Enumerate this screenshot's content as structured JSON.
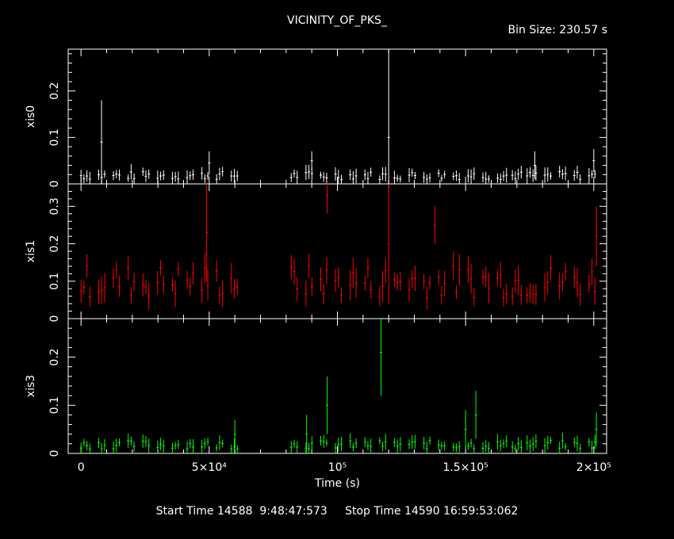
{
  "header": {
    "title": "VICINITY_OF_PKS_",
    "bin_size": "Bin Size: 230.57 s"
  },
  "footer": {
    "start_label": "Start Time 14588  9:48:47:573",
    "stop_label": "Stop Time 14590 16:59:53:062"
  },
  "chart_data": [
    {
      "type": "line",
      "panel": "xis0",
      "ylabel": "xis0",
      "color": "#ffffff",
      "xlim": [
        -5000,
        205000
      ],
      "ylim": [
        0,
        0.29
      ],
      "yticks": [
        {
          "v": 0,
          "label": "0"
        },
        {
          "v": 0.1,
          "label": "0.1"
        },
        {
          "v": 0.2,
          "label": "0.2"
        }
      ],
      "baseline": 0.018,
      "noise": 0.009,
      "err": 0.012,
      "spikes": [
        {
          "x": 8000,
          "y": 0.09,
          "hi": 0.18
        },
        {
          "x": 50000,
          "y": 0.045,
          "hi": 0.07
        },
        {
          "x": 90000,
          "y": 0.05,
          "hi": 0.07
        },
        {
          "x": 120000,
          "y": 0.1,
          "hi": 0.29
        },
        {
          "x": 177000,
          "y": 0.04,
          "hi": 0.07
        },
        {
          "x": 200000,
          "y": 0.05,
          "hi": 0.075
        }
      ]
    },
    {
      "type": "line",
      "panel": "xis1",
      "ylabel": "xis1",
      "color": "#ff0000",
      "xlim": [
        -5000,
        205000
      ],
      "ylim": [
        0,
        0.36
      ],
      "yticks": [
        {
          "v": 0,
          "label": "0"
        },
        {
          "v": 0.1,
          "label": "0.1"
        },
        {
          "v": 0.2,
          "label": "0.2"
        },
        {
          "v": 0.3,
          "label": "0.3"
        }
      ],
      "baseline": 0.1,
      "noise": 0.045,
      "err": 0.03,
      "spikes": [
        {
          "x": 49000,
          "y": 0.23,
          "hi": 0.36
        },
        {
          "x": 96000,
          "y": 0.33,
          "hi": 0.38
        },
        {
          "x": 120000,
          "y": 0.2,
          "hi": 0.36
        },
        {
          "x": 138000,
          "y": 0.25,
          "hi": 0.3
        },
        {
          "x": 201000,
          "y": 0.22,
          "hi": 0.3
        }
      ]
    },
    {
      "type": "line",
      "panel": "xis3",
      "ylabel": "xis3",
      "color": "#00ff00",
      "xlim": [
        -5000,
        205000
      ],
      "ylim": [
        0,
        0.28
      ],
      "yticks": [
        {
          "v": 0,
          "label": "0"
        },
        {
          "v": 0.1,
          "label": "0.1"
        },
        {
          "v": 0.2,
          "label": "0.2"
        }
      ],
      "baseline": 0.018,
      "noise": 0.009,
      "err": 0.012,
      "spikes": [
        {
          "x": 60000,
          "y": 0.04,
          "hi": 0.07
        },
        {
          "x": 88000,
          "y": 0.04,
          "hi": 0.08
        },
        {
          "x": 96000,
          "y": 0.1,
          "hi": 0.16
        },
        {
          "x": 117000,
          "y": 0.21,
          "hi": 0.3
        },
        {
          "x": 150000,
          "y": 0.05,
          "hi": 0.09
        },
        {
          "x": 154000,
          "y": 0.08,
          "hi": 0.13
        },
        {
          "x": 201000,
          "y": 0.05,
          "hi": 0.085
        }
      ]
    }
  ],
  "observation": {
    "segments": [
      [
        0,
        62000
      ],
      [
        82000,
        201000
      ]
    ],
    "bin_s": 230.57
  },
  "x_axis": {
    "label": "Time (s)",
    "ticks": [
      {
        "v": 0,
        "label": "0"
      },
      {
        "v": 50000,
        "label": "5×10⁴"
      },
      {
        "v": 100000,
        "label": "10⁵"
      },
      {
        "v": 150000,
        "label": "1.5×10⁵"
      },
      {
        "v": 200000,
        "label": "2×10⁵"
      }
    ]
  }
}
